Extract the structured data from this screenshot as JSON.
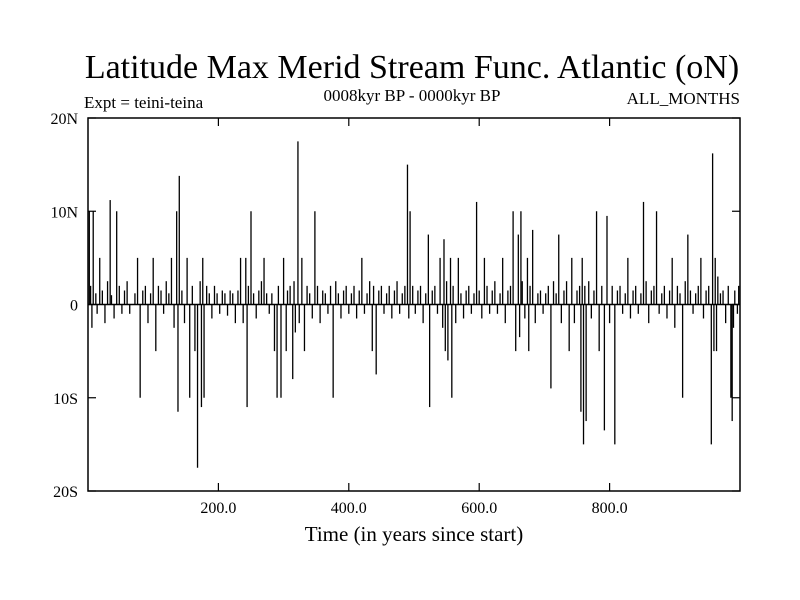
{
  "chart_data": {
    "type": "line",
    "title": "Latitude Max Merid Stream Func. Atlantic (oN)",
    "subtitle_left": "Expt = teini-teina",
    "subtitle_center": "0008kyr BP - 0000kyr BP",
    "subtitle_right": "ALL_MONTHS",
    "xlabel": "Time (in years since start)",
    "ylabel": "",
    "xlim": [
      0,
      1000
    ],
    "ylim": [
      -20,
      20
    ],
    "x_ticks": [
      {
        "value": 200,
        "label": "200.0"
      },
      {
        "value": 400,
        "label": "400.0"
      },
      {
        "value": 600,
        "label": "600.0"
      },
      {
        "value": 800,
        "label": "800.0"
      }
    ],
    "y_ticks": [
      {
        "value": 20,
        "label": "20N"
      },
      {
        "value": 10,
        "label": "10N"
      },
      {
        "value": 0,
        "label": "0"
      },
      {
        "value": -10,
        "label": "10S"
      },
      {
        "value": -20,
        "label": "20S"
      }
    ],
    "grid": false,
    "line_color": "#000000",
    "spikes": [
      {
        "x": 2,
        "y": 10.0
      },
      {
        "x": 4,
        "y": 2.0
      },
      {
        "x": 6,
        "y": -2.5
      },
      {
        "x": 8,
        "y": 10.0
      },
      {
        "x": 12,
        "y": 1.2
      },
      {
        "x": 14,
        "y": -1.0
      },
      {
        "x": 18,
        "y": 5.0
      },
      {
        "x": 22,
        "y": 1.5
      },
      {
        "x": 26,
        "y": -2.0
      },
      {
        "x": 30,
        "y": 2.5
      },
      {
        "x": 34,
        "y": 11.2
      },
      {
        "x": 36,
        "y": 1.0
      },
      {
        "x": 40,
        "y": -1.5
      },
      {
        "x": 44,
        "y": 10.0
      },
      {
        "x": 48,
        "y": 2.0
      },
      {
        "x": 52,
        "y": -1.0
      },
      {
        "x": 56,
        "y": 1.5
      },
      {
        "x": 60,
        "y": 2.5
      },
      {
        "x": 64,
        "y": -1.0
      },
      {
        "x": 72,
        "y": 1.2
      },
      {
        "x": 76,
        "y": 5.0
      },
      {
        "x": 80,
        "y": -10.0
      },
      {
        "x": 84,
        "y": 1.5
      },
      {
        "x": 88,
        "y": 2.0
      },
      {
        "x": 92,
        "y": -2.0
      },
      {
        "x": 96,
        "y": 1.2
      },
      {
        "x": 100,
        "y": 5.0
      },
      {
        "x": 104,
        "y": -5.0
      },
      {
        "x": 108,
        "y": 2.0
      },
      {
        "x": 112,
        "y": 1.5
      },
      {
        "x": 116,
        "y": -1.0
      },
      {
        "x": 120,
        "y": 2.5
      },
      {
        "x": 124,
        "y": 1.2
      },
      {
        "x": 128,
        "y": 5.0
      },
      {
        "x": 132,
        "y": -2.5
      },
      {
        "x": 136,
        "y": 10.0
      },
      {
        "x": 138,
        "y": -11.5
      },
      {
        "x": 140,
        "y": 13.8
      },
      {
        "x": 144,
        "y": 1.5
      },
      {
        "x": 148,
        "y": -2.0
      },
      {
        "x": 152,
        "y": 5.0
      },
      {
        "x": 156,
        "y": -10.0
      },
      {
        "x": 160,
        "y": 2.0
      },
      {
        "x": 164,
        "y": -5.0
      },
      {
        "x": 168,
        "y": -17.5
      },
      {
        "x": 172,
        "y": 2.5
      },
      {
        "x": 174,
        "y": -11.0
      },
      {
        "x": 176,
        "y": 5.0
      },
      {
        "x": 178,
        "y": -10.0
      },
      {
        "x": 182,
        "y": 2.0
      },
      {
        "x": 186,
        "y": 1.2
      },
      {
        "x": 190,
        "y": -1.5
      },
      {
        "x": 194,
        "y": 2.0
      },
      {
        "x": 198,
        "y": 1.2
      },
      {
        "x": 202,
        "y": -1.0
      },
      {
        "x": 206,
        "y": 1.5
      },
      {
        "x": 210,
        "y": 1.2
      },
      {
        "x": 214,
        "y": -1.2
      },
      {
        "x": 218,
        "y": 1.5
      },
      {
        "x": 222,
        "y": 1.2
      },
      {
        "x": 226,
        "y": -2.0
      },
      {
        "x": 230,
        "y": 1.5
      },
      {
        "x": 234,
        "y": 5.0
      },
      {
        "x": 238,
        "y": -2.0
      },
      {
        "x": 242,
        "y": 5.0
      },
      {
        "x": 244,
        "y": -11.0
      },
      {
        "x": 246,
        "y": 2.0
      },
      {
        "x": 250,
        "y": 10.0
      },
      {
        "x": 254,
        "y": 1.2
      },
      {
        "x": 258,
        "y": -1.5
      },
      {
        "x": 262,
        "y": 1.5
      },
      {
        "x": 266,
        "y": 2.5
      },
      {
        "x": 270,
        "y": 5.0
      },
      {
        "x": 274,
        "y": 1.2
      },
      {
        "x": 278,
        "y": -1.0
      },
      {
        "x": 282,
        "y": 1.2
      },
      {
        "x": 286,
        "y": -5.0
      },
      {
        "x": 290,
        "y": -10.0
      },
      {
        "x": 292,
        "y": 2.0
      },
      {
        "x": 296,
        "y": -10.0
      },
      {
        "x": 300,
        "y": 5.0
      },
      {
        "x": 304,
        "y": -5.0
      },
      {
        "x": 306,
        "y": 1.5
      },
      {
        "x": 310,
        "y": 2.0
      },
      {
        "x": 314,
        "y": -8.0
      },
      {
        "x": 316,
        "y": 2.5
      },
      {
        "x": 318,
        "y": -3.0
      },
      {
        "x": 322,
        "y": 17.5
      },
      {
        "x": 324,
        "y": -2.0
      },
      {
        "x": 328,
        "y": 5.0
      },
      {
        "x": 332,
        "y": -5.0
      },
      {
        "x": 336,
        "y": 2.0
      },
      {
        "x": 340,
        "y": 1.2
      },
      {
        "x": 344,
        "y": -1.5
      },
      {
        "x": 348,
        "y": 10.0
      },
      {
        "x": 352,
        "y": 2.0
      },
      {
        "x": 356,
        "y": -2.0
      },
      {
        "x": 360,
        "y": 1.5
      },
      {
        "x": 364,
        "y": 1.2
      },
      {
        "x": 368,
        "y": -1.0
      },
      {
        "x": 372,
        "y": 2.0
      },
      {
        "x": 376,
        "y": -10.0
      },
      {
        "x": 380,
        "y": 2.5
      },
      {
        "x": 384,
        "y": 1.2
      },
      {
        "x": 388,
        "y": -1.5
      },
      {
        "x": 392,
        "y": 1.5
      },
      {
        "x": 396,
        "y": 2.0
      },
      {
        "x": 400,
        "y": -1.0
      },
      {
        "x": 404,
        "y": 1.2
      },
      {
        "x": 408,
        "y": 2.0
      },
      {
        "x": 412,
        "y": -1.5
      },
      {
        "x": 416,
        "y": 1.5
      },
      {
        "x": 420,
        "y": 5.0
      },
      {
        "x": 424,
        "y": -1.0
      },
      {
        "x": 428,
        "y": 1.2
      },
      {
        "x": 432,
        "y": 2.5
      },
      {
        "x": 436,
        "y": -5.0
      },
      {
        "x": 438,
        "y": 2.0
      },
      {
        "x": 442,
        "y": -7.5
      },
      {
        "x": 446,
        "y": 1.5
      },
      {
        "x": 450,
        "y": 2.0
      },
      {
        "x": 454,
        "y": -1.0
      },
      {
        "x": 458,
        "y": 1.2
      },
      {
        "x": 462,
        "y": 2.0
      },
      {
        "x": 466,
        "y": -1.5
      },
      {
        "x": 470,
        "y": 1.5
      },
      {
        "x": 474,
        "y": 2.5
      },
      {
        "x": 478,
        "y": -1.0
      },
      {
        "x": 482,
        "y": 1.2
      },
      {
        "x": 486,
        "y": 2.0
      },
      {
        "x": 490,
        "y": 15.0
      },
      {
        "x": 492,
        "y": -1.5
      },
      {
        "x": 494,
        "y": 10.0
      },
      {
        "x": 498,
        "y": 2.0
      },
      {
        "x": 502,
        "y": -1.0
      },
      {
        "x": 506,
        "y": 1.5
      },
      {
        "x": 510,
        "y": 2.0
      },
      {
        "x": 514,
        "y": -2.0
      },
      {
        "x": 518,
        "y": 1.2
      },
      {
        "x": 522,
        "y": 7.5
      },
      {
        "x": 524,
        "y": -11.0
      },
      {
        "x": 528,
        "y": 1.5
      },
      {
        "x": 532,
        "y": 2.0
      },
      {
        "x": 536,
        "y": -1.0
      },
      {
        "x": 540,
        "y": 5.0
      },
      {
        "x": 544,
        "y": -2.5
      },
      {
        "x": 546,
        "y": 7.0
      },
      {
        "x": 548,
        "y": -5.0
      },
      {
        "x": 550,
        "y": 2.5
      },
      {
        "x": 552,
        "y": -6.0
      },
      {
        "x": 556,
        "y": 5.0
      },
      {
        "x": 558,
        "y": -10.0
      },
      {
        "x": 560,
        "y": 2.0
      },
      {
        "x": 564,
        "y": -2.0
      },
      {
        "x": 568,
        "y": 5.0
      },
      {
        "x": 572,
        "y": 1.2
      },
      {
        "x": 576,
        "y": -1.5
      },
      {
        "x": 580,
        "y": 1.5
      },
      {
        "x": 584,
        "y": 2.0
      },
      {
        "x": 588,
        "y": -1.0
      },
      {
        "x": 592,
        "y": 1.2
      },
      {
        "x": 596,
        "y": 11.0
      },
      {
        "x": 600,
        "y": 1.5
      },
      {
        "x": 604,
        "y": -1.5
      },
      {
        "x": 608,
        "y": 5.0
      },
      {
        "x": 612,
        "y": 2.0
      },
      {
        "x": 616,
        "y": -1.0
      },
      {
        "x": 620,
        "y": 1.5
      },
      {
        "x": 624,
        "y": 2.5
      },
      {
        "x": 628,
        "y": -1.0
      },
      {
        "x": 632,
        "y": 1.2
      },
      {
        "x": 636,
        "y": 5.0
      },
      {
        "x": 640,
        "y": -2.0
      },
      {
        "x": 644,
        "y": 1.5
      },
      {
        "x": 648,
        "y": 2.0
      },
      {
        "x": 652,
        "y": 10.0
      },
      {
        "x": 656,
        "y": -5.0
      },
      {
        "x": 660,
        "y": 7.5
      },
      {
        "x": 662,
        "y": -3.5
      },
      {
        "x": 664,
        "y": 10.0
      },
      {
        "x": 666,
        "y": 2.5
      },
      {
        "x": 670,
        "y": -1.5
      },
      {
        "x": 674,
        "y": 5.0
      },
      {
        "x": 676,
        "y": -5.0
      },
      {
        "x": 678,
        "y": 2.0
      },
      {
        "x": 682,
        "y": 8.0
      },
      {
        "x": 686,
        "y": -2.0
      },
      {
        "x": 690,
        "y": 1.2
      },
      {
        "x": 694,
        "y": 1.5
      },
      {
        "x": 698,
        "y": -1.0
      },
      {
        "x": 702,
        "y": 1.2
      },
      {
        "x": 706,
        "y": 2.0
      },
      {
        "x": 710,
        "y": -9.0
      },
      {
        "x": 714,
        "y": 2.5
      },
      {
        "x": 718,
        "y": 1.2
      },
      {
        "x": 722,
        "y": 7.5
      },
      {
        "x": 726,
        "y": -2.0
      },
      {
        "x": 730,
        "y": 1.5
      },
      {
        "x": 734,
        "y": 2.5
      },
      {
        "x": 738,
        "y": -5.0
      },
      {
        "x": 742,
        "y": 5.0
      },
      {
        "x": 746,
        "y": -2.0
      },
      {
        "x": 750,
        "y": 1.5
      },
      {
        "x": 754,
        "y": 2.0
      },
      {
        "x": 756,
        "y": -11.5
      },
      {
        "x": 758,
        "y": 5.0
      },
      {
        "x": 760,
        "y": -15.0
      },
      {
        "x": 762,
        "y": 2.0
      },
      {
        "x": 764,
        "y": -12.5
      },
      {
        "x": 768,
        "y": 2.5
      },
      {
        "x": 772,
        "y": -1.5
      },
      {
        "x": 776,
        "y": 1.5
      },
      {
        "x": 780,
        "y": 10.0
      },
      {
        "x": 784,
        "y": -5.0
      },
      {
        "x": 788,
        "y": 2.0
      },
      {
        "x": 792,
        "y": -13.5
      },
      {
        "x": 796,
        "y": 9.5
      },
      {
        "x": 800,
        "y": -2.0
      },
      {
        "x": 804,
        "y": 2.0
      },
      {
        "x": 808,
        "y": -15.0
      },
      {
        "x": 812,
        "y": 1.5
      },
      {
        "x": 816,
        "y": 2.0
      },
      {
        "x": 820,
        "y": -1.0
      },
      {
        "x": 824,
        "y": 1.2
      },
      {
        "x": 828,
        "y": 5.0
      },
      {
        "x": 832,
        "y": -1.5
      },
      {
        "x": 836,
        "y": 1.5
      },
      {
        "x": 840,
        "y": 2.0
      },
      {
        "x": 844,
        "y": -1.0
      },
      {
        "x": 848,
        "y": 1.2
      },
      {
        "x": 852,
        "y": 11.0
      },
      {
        "x": 856,
        "y": 2.5
      },
      {
        "x": 860,
        "y": -2.0
      },
      {
        "x": 864,
        "y": 1.5
      },
      {
        "x": 868,
        "y": 2.0
      },
      {
        "x": 872,
        "y": 10.0
      },
      {
        "x": 876,
        "y": -1.0
      },
      {
        "x": 880,
        "y": 1.2
      },
      {
        "x": 884,
        "y": 2.0
      },
      {
        "x": 888,
        "y": -1.5
      },
      {
        "x": 892,
        "y": 1.5
      },
      {
        "x": 896,
        "y": 5.0
      },
      {
        "x": 900,
        "y": -2.5
      },
      {
        "x": 904,
        "y": 2.0
      },
      {
        "x": 908,
        "y": 1.2
      },
      {
        "x": 912,
        "y": -10.0
      },
      {
        "x": 916,
        "y": 2.5
      },
      {
        "x": 920,
        "y": 7.5
      },
      {
        "x": 924,
        "y": 1.5
      },
      {
        "x": 928,
        "y": -1.0
      },
      {
        "x": 932,
        "y": 1.2
      },
      {
        "x": 936,
        "y": 2.0
      },
      {
        "x": 940,
        "y": 5.0
      },
      {
        "x": 944,
        "y": -1.5
      },
      {
        "x": 948,
        "y": 1.5
      },
      {
        "x": 952,
        "y": 2.0
      },
      {
        "x": 956,
        "y": -15.0
      },
      {
        "x": 958,
        "y": 16.2
      },
      {
        "x": 960,
        "y": -5.0
      },
      {
        "x": 962,
        "y": 5.0
      },
      {
        "x": 964,
        "y": -5.0
      },
      {
        "x": 966,
        "y": 3.0
      },
      {
        "x": 970,
        "y": 1.2
      },
      {
        "x": 974,
        "y": 1.5
      },
      {
        "x": 978,
        "y": -2.0
      },
      {
        "x": 982,
        "y": 2.0
      },
      {
        "x": 986,
        "y": -10.0
      },
      {
        "x": 988,
        "y": -12.5
      },
      {
        "x": 990,
        "y": -2.5
      },
      {
        "x": 992,
        "y": 1.5
      },
      {
        "x": 996,
        "y": -1.0
      },
      {
        "x": 998,
        "y": 2.0
      }
    ]
  }
}
